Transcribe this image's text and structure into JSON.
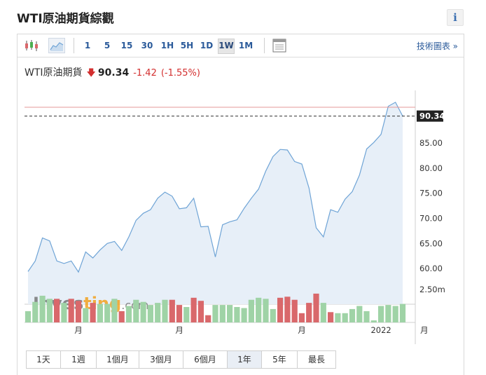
{
  "header": {
    "title": "WTI原油期貨綜觀",
    "info_label": "i"
  },
  "toolbar": {
    "timeframes": [
      "1",
      "5",
      "15",
      "30",
      "1H",
      "5H",
      "1D",
      "1W",
      "1M"
    ],
    "active_timeframe": "1W",
    "tech_chart_link": "技術圖表 »"
  },
  "quote": {
    "name": "WTI原油期貨",
    "direction": "down",
    "arrow": "🡇",
    "price": "90.34",
    "change": "-1.42",
    "change_pct": "(-1.55%)"
  },
  "colors": {
    "line": "#6fa4d6",
    "area": "#e7eff8",
    "vol_up": "#9fd3a6",
    "vol_down": "#d9686b",
    "price_line": "#e59a9a",
    "label_bg": "#222222"
  },
  "chart_data": {
    "type": "area",
    "title": "",
    "ylim": [
      57.5,
      93.5
    ],
    "y_ticks": [
      "60.00",
      "65.00",
      "70.00",
      "75.00",
      "80.00",
      "85.00"
    ],
    "last_price_label": "90.34",
    "x_tick_labels": [
      {
        "text": "月",
        "index": 7
      },
      {
        "text": "月",
        "index": 21
      },
      {
        "text": "月",
        "index": 38
      },
      {
        "text": "2022",
        "index": 49
      },
      {
        "text": "月",
        "index": 55
      }
    ],
    "values": [
      59.4,
      61.5,
      66.1,
      65.5,
      61.5,
      61.0,
      61.5,
      59.3,
      63.3,
      62.1,
      63.7,
      65.0,
      65.4,
      63.6,
      66.3,
      69.6,
      71.0,
      71.7,
      74.0,
      75.2,
      74.4,
      71.9,
      72.1,
      74.0,
      68.3,
      68.4,
      62.3,
      68.7,
      69.3,
      69.7,
      72.0,
      74.0,
      75.8,
      79.4,
      82.3,
      83.7,
      83.6,
      81.3,
      80.8,
      76.0,
      68.1,
      66.3,
      71.7,
      71.2,
      73.8,
      75.3,
      78.6,
      83.8,
      85.1,
      86.7,
      92.3,
      93.1,
      90.34
    ],
    "volume_label": "2.50m",
    "volume_max": 3.0,
    "volume": [
      {
        "v": 1.1,
        "d": "up"
      },
      {
        "v": 2.0,
        "d": "up"
      },
      {
        "v": 2.6,
        "d": "up"
      },
      {
        "v": 2.3,
        "d": "up"
      },
      {
        "v": 2.3,
        "d": "down"
      },
      {
        "v": 1.9,
        "d": "up"
      },
      {
        "v": 2.3,
        "d": "down"
      },
      {
        "v": 2.1,
        "d": "down"
      },
      {
        "v": 1.4,
        "d": "up"
      },
      {
        "v": 1.9,
        "d": "down"
      },
      {
        "v": 1.8,
        "d": "up"
      },
      {
        "v": 1.8,
        "d": "up"
      },
      {
        "v": 2.3,
        "d": "up"
      },
      {
        "v": 1.1,
        "d": "down"
      },
      {
        "v": 1.6,
        "d": "up"
      },
      {
        "v": 2.2,
        "d": "up"
      },
      {
        "v": 2.0,
        "d": "up"
      },
      {
        "v": 1.7,
        "d": "up"
      },
      {
        "v": 1.9,
        "d": "up"
      },
      {
        "v": 2.2,
        "d": "up"
      },
      {
        "v": 2.2,
        "d": "down"
      },
      {
        "v": 1.7,
        "d": "down"
      },
      {
        "v": 1.5,
        "d": "up"
      },
      {
        "v": 2.4,
        "d": "down"
      },
      {
        "v": 2.1,
        "d": "down"
      },
      {
        "v": 0.7,
        "d": "down"
      },
      {
        "v": 1.7,
        "d": "up"
      },
      {
        "v": 1.7,
        "d": "up"
      },
      {
        "v": 1.7,
        "d": "up"
      },
      {
        "v": 1.5,
        "d": "up"
      },
      {
        "v": 1.4,
        "d": "up"
      },
      {
        "v": 2.2,
        "d": "up"
      },
      {
        "v": 2.4,
        "d": "up"
      },
      {
        "v": 2.3,
        "d": "up"
      },
      {
        "v": 1.3,
        "d": "up"
      },
      {
        "v": 2.4,
        "d": "down"
      },
      {
        "v": 2.5,
        "d": "down"
      },
      {
        "v": 2.2,
        "d": "down"
      },
      {
        "v": 0.9,
        "d": "down"
      },
      {
        "v": 1.9,
        "d": "down"
      },
      {
        "v": 2.8,
        "d": "down"
      },
      {
        "v": 1.9,
        "d": "up"
      },
      {
        "v": 1.0,
        "d": "down"
      },
      {
        "v": 0.9,
        "d": "up"
      },
      {
        "v": 0.9,
        "d": "up"
      },
      {
        "v": 1.3,
        "d": "up"
      },
      {
        "v": 1.6,
        "d": "up"
      },
      {
        "v": 1.1,
        "d": "up"
      },
      {
        "v": 0.2,
        "d": "up"
      },
      {
        "v": 1.6,
        "d": "up"
      },
      {
        "v": 1.7,
        "d": "up"
      },
      {
        "v": 1.6,
        "d": "up"
      },
      {
        "v": 1.8,
        "d": "up"
      }
    ]
  },
  "watermark": {
    "brand_a": "Inves",
    "brand_b": "ting",
    "suffix": ".com"
  },
  "ranges": {
    "items": [
      "1天",
      "1週",
      "1個月",
      "3個月",
      "6個月",
      "1年",
      "5年",
      "最長"
    ],
    "active": "1年"
  }
}
